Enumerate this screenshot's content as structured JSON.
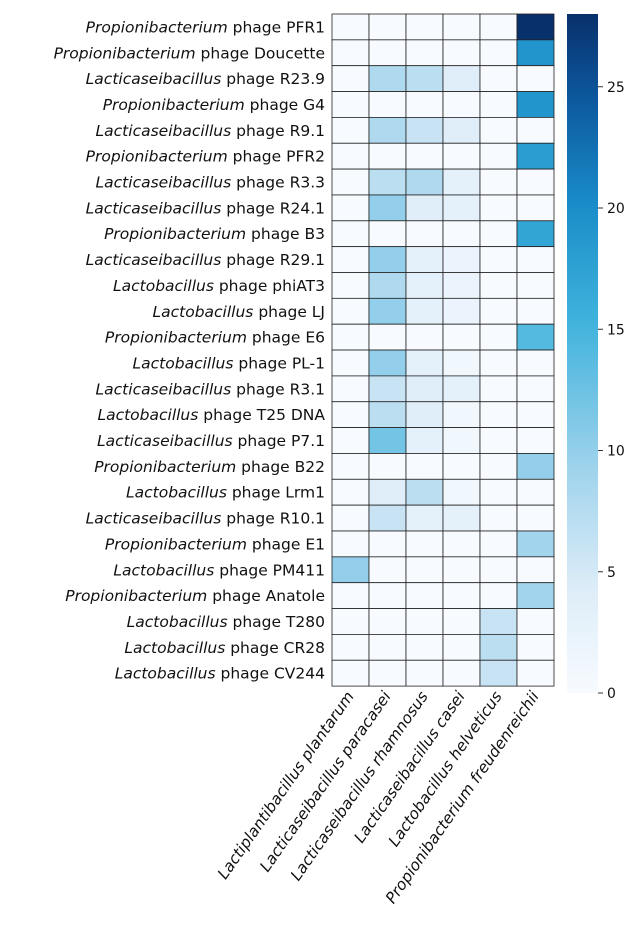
{
  "chart_data": {
    "type": "heatmap",
    "title": "",
    "rows": [
      {
        "genus": "Propionibacterium",
        "rest": " phage PFR1"
      },
      {
        "genus": "Propionibacterium",
        "rest": " phage Doucette"
      },
      {
        "genus": "Lacticaseibacillus",
        "rest": " phage R23.9"
      },
      {
        "genus": "Propionibacterium",
        "rest": " phage G4"
      },
      {
        "genus": "Lacticaseibacillus",
        "rest": " phage R9.1"
      },
      {
        "genus": "Propionibacterium",
        "rest": " phage PFR2"
      },
      {
        "genus": "Lacticaseibacillus",
        "rest": " phage R3.3"
      },
      {
        "genus": "Lacticaseibacillus",
        "rest": " phage R24.1"
      },
      {
        "genus": "Propionibacterium",
        "rest": " phage B3"
      },
      {
        "genus": "Lacticaseibacillus",
        "rest": " phage R29.1"
      },
      {
        "genus": "Lactobacillus",
        "rest": " phage phiAT3"
      },
      {
        "genus": "Lactobacillus",
        "rest": " phage LJ"
      },
      {
        "genus": "Propionibacterium",
        "rest": " phage E6"
      },
      {
        "genus": "Lactobacillus",
        "rest": " phage PL-1"
      },
      {
        "genus": "Lacticaseibacillus",
        "rest": " phage R3.1"
      },
      {
        "genus": "Lactobacillus",
        "rest": " phage T25 DNA"
      },
      {
        "genus": "Lacticaseibacillus",
        "rest": " phage P7.1"
      },
      {
        "genus": "Propionibacterium",
        "rest": " phage B22"
      },
      {
        "genus": "Lactobacillus",
        "rest": " phage Lrm1"
      },
      {
        "genus": "Lacticaseibacillus",
        "rest": " phage R10.1"
      },
      {
        "genus": "Propionibacterium",
        "rest": " phage E1"
      },
      {
        "genus": "Lactobacillus",
        "rest": " phage PM411"
      },
      {
        "genus": "Propionibacterium",
        "rest": " phage Anatole"
      },
      {
        "genus": "Lactobacillus",
        "rest": " phage T280"
      },
      {
        "genus": "Lactobacillus",
        "rest": " phage CR28"
      },
      {
        "genus": "Lactobacillus",
        "rest": " phage CV244"
      }
    ],
    "columns": [
      "Lactiplantibacillus plantarum",
      "Lacticaseibacillus paracasei",
      "Lacticaseibacillus rhamnosus",
      "Lacticaseibacillus casei",
      "Lactobacillus helveticus",
      "Propionibacterium freudenreichii"
    ],
    "values": [
      [
        0,
        0,
        0,
        0,
        0,
        28
      ],
      [
        0,
        0,
        0,
        0,
        0,
        19
      ],
      [
        0,
        8,
        7,
        4,
        0,
        0
      ],
      [
        0,
        0,
        0,
        0,
        0,
        19
      ],
      [
        0,
        8,
        6,
        4,
        0,
        0
      ],
      [
        0,
        0,
        0,
        0,
        0,
        18
      ],
      [
        0,
        7,
        8,
        3,
        0,
        0
      ],
      [
        0,
        10,
        4,
        3,
        0,
        0
      ],
      [
        0,
        0,
        0,
        0,
        0,
        17
      ],
      [
        0,
        10,
        3,
        2,
        0,
        0
      ],
      [
        0,
        8,
        3,
        2,
        0,
        0
      ],
      [
        0,
        10,
        3,
        2,
        0,
        0
      ],
      [
        0,
        0,
        0,
        0,
        0,
        14
      ],
      [
        0,
        10,
        3,
        1,
        0,
        0
      ],
      [
        0,
        6,
        4,
        3,
        0,
        0
      ],
      [
        0,
        7,
        4,
        1,
        0,
        0
      ],
      [
        0,
        12,
        3,
        1,
        0,
        0
      ],
      [
        0,
        0,
        0,
        0,
        0,
        10
      ],
      [
        0,
        4,
        7,
        1,
        0,
        0
      ],
      [
        0,
        6,
        3,
        3,
        0,
        0
      ],
      [
        0,
        0,
        0,
        0,
        0,
        9
      ],
      [
        10,
        0,
        0,
        0,
        0,
        0
      ],
      [
        0,
        0,
        0,
        0,
        0,
        9
      ],
      [
        0,
        0,
        0,
        0,
        6,
        0
      ],
      [
        0,
        0,
        0,
        0,
        7,
        0
      ],
      [
        0,
        0,
        0,
        0,
        6,
        0
      ]
    ],
    "colorbar": {
      "min": 0,
      "max": 28,
      "ticks": [
        0,
        5,
        10,
        15,
        20,
        25
      ],
      "colors": [
        "#f7fbff",
        "#bfe0f3",
        "#1aa3d6",
        "#08306b"
      ]
    }
  }
}
